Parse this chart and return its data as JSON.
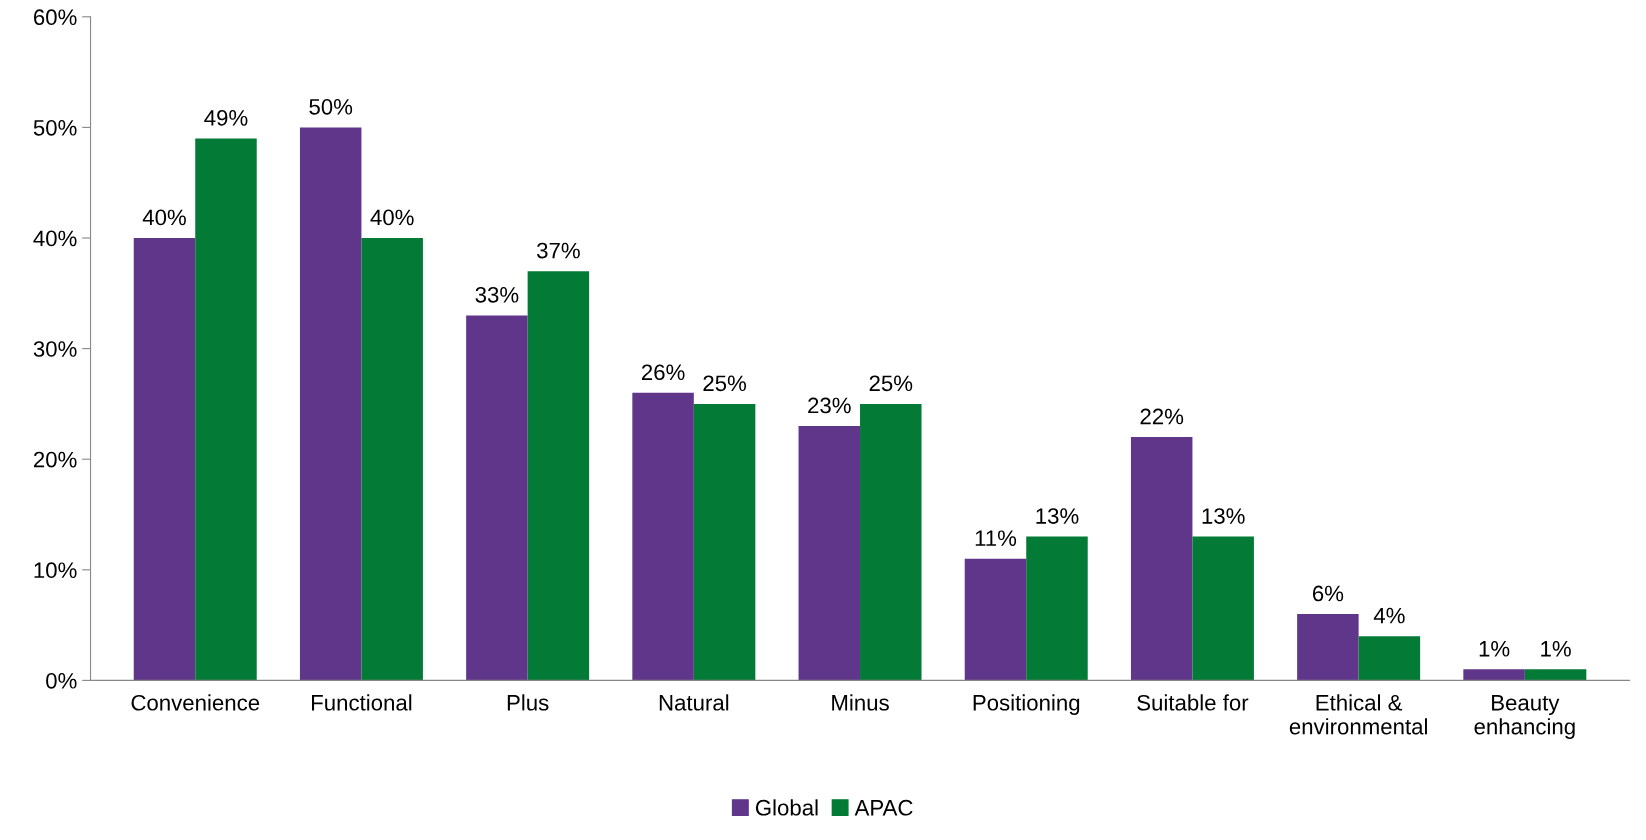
{
  "chart_data": {
    "type": "bar",
    "categories": [
      "Convenience",
      "Functional",
      "Plus",
      "Natural",
      "Minus",
      "Positioning",
      "Suitable for",
      "Ethical &\nenvironmental",
      "Beauty\nenhancing"
    ],
    "series": [
      {
        "name": "Global",
        "color": "#5f3689",
        "values": [
          40,
          50,
          33,
          26,
          23,
          11,
          22,
          6,
          1
        ],
        "value_labels": [
          "40%",
          "50%",
          "33%",
          "26%",
          "23%",
          "11%",
          "22%",
          "6%",
          "1%"
        ]
      },
      {
        "name": "APAC",
        "color": "#037a35",
        "values": [
          49,
          40,
          37,
          25,
          25,
          13,
          13,
          4,
          1
        ],
        "value_labels": [
          "49%",
          "40%",
          "37%",
          "25%",
          "25%",
          "13%",
          "13%",
          "4%",
          "1%"
        ]
      }
    ],
    "ylim": [
      0,
      60
    ],
    "yticks": [
      {
        "value": 0,
        "label": "0%"
      },
      {
        "value": 10,
        "label": "10%"
      },
      {
        "value": 20,
        "label": "20%"
      },
      {
        "value": 30,
        "label": "30%"
      },
      {
        "value": 40,
        "label": "40%"
      },
      {
        "value": 50,
        "label": "50%"
      },
      {
        "value": 60,
        "label": "60%"
      }
    ],
    "grid": false,
    "legend": "bottom"
  }
}
